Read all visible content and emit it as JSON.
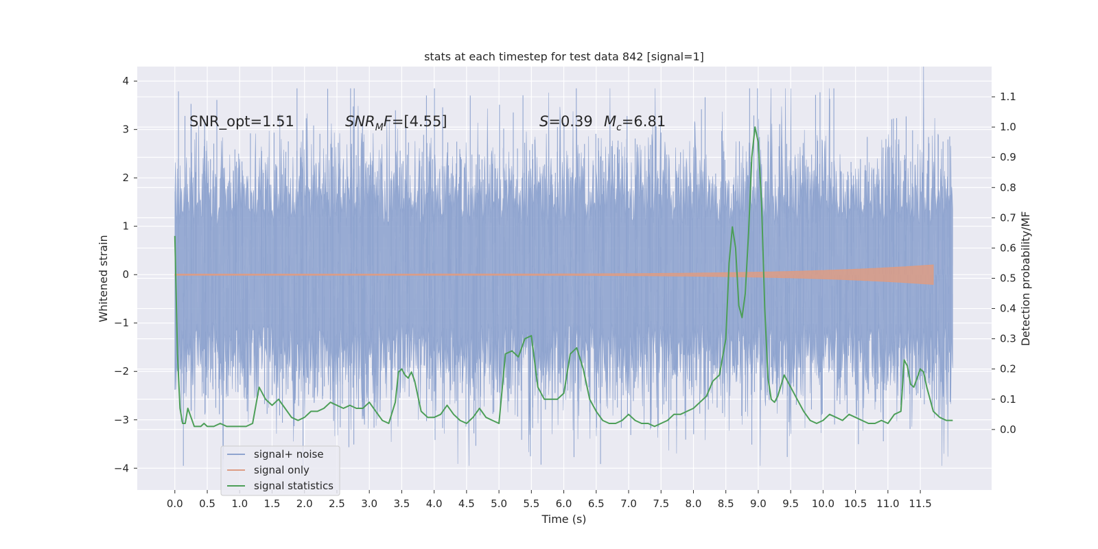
{
  "chart_data": {
    "type": "line",
    "title": "stats at each timestep for test data 842 [signal=1]",
    "xlabel": "Time (s)",
    "ylabel": "Whitened strain",
    "y2label": "Detection probability/MF",
    "xlim": [
      -0.58,
      12.6
    ],
    "ylim": [
      -4.45,
      4.3
    ],
    "y2lim": [
      -0.2,
      1.2
    ],
    "xticks": [
      0.0,
      0.5,
      1.0,
      1.5,
      2.0,
      2.5,
      3.0,
      3.5,
      4.0,
      4.5,
      5.0,
      5.5,
      6.0,
      6.5,
      7.0,
      7.5,
      8.0,
      8.5,
      9.0,
      9.5,
      10.0,
      10.5,
      11.0,
      11.5
    ],
    "xtick_labels": [
      "0.0",
      "0.5",
      "1.0",
      "1.5",
      "2.0",
      "2.5",
      "3.0",
      "3.5",
      "4.0",
      "4.5",
      "5.0",
      "5.5",
      "6.0",
      "6.5",
      "7.0",
      "7.5",
      "8.0",
      "8.5",
      "9.0",
      "9.5",
      "10.0",
      "10.5",
      "11.0",
      "11.5"
    ],
    "yticks": [
      -4,
      -3,
      -2,
      -1,
      0,
      1,
      2,
      3,
      4
    ],
    "ytick_labels": [
      "−4",
      "−3",
      "−2",
      "−1",
      "0",
      "1",
      "2",
      "3",
      "4"
    ],
    "y2ticks": [
      0.0,
      0.1,
      0.2,
      0.3,
      0.4,
      0.5,
      0.6,
      0.7,
      0.8,
      0.9,
      1.0,
      1.1
    ],
    "y2tick_labels": [
      "0.0",
      "0.1",
      "0.2",
      "0.3",
      "0.4",
      "0.5",
      "0.6",
      "0.7",
      "0.8",
      "0.9",
      "1.0",
      "1.1"
    ],
    "grid": true,
    "legend_position": "lower-left",
    "annotations": {
      "snr_opt": "SNR_opt=1.51",
      "snr_mf_main": "SNR",
      "snr_mf_sub": "M",
      "snr_mf_rest": "F=[4.55]",
      "s_main": "S",
      "s_rest": "=0.39",
      "mc_main": "M",
      "mc_sub": "c",
      "mc_rest": "=6.81"
    },
    "series": [
      {
        "name": "signal+ noise",
        "color": "#8fa4cf",
        "axis": "left",
        "x_range": [
          0.0,
          12.0
        ],
        "envelope": "noise with standard deviation about 1, extremes about ±3.9"
      },
      {
        "name": "signal only",
        "color": "#dd9c84",
        "axis": "left",
        "x_range": [
          0.0,
          11.7
        ],
        "envelope": "chirp amplitude growing from 0 to about 0.2 near 11.65 s"
      },
      {
        "name": "signal statistics",
        "color": "#4c9e57",
        "axis": "right",
        "x": [
          0.0,
          0.04,
          0.08,
          0.12,
          0.16,
          0.2,
          0.25,
          0.3,
          0.35,
          0.4,
          0.45,
          0.5,
          0.6,
          0.7,
          0.8,
          0.9,
          1.0,
          1.1,
          1.2,
          1.3,
          1.4,
          1.5,
          1.6,
          1.7,
          1.8,
          1.9,
          2.0,
          2.1,
          2.2,
          2.3,
          2.4,
          2.5,
          2.6,
          2.7,
          2.8,
          2.9,
          3.0,
          3.1,
          3.2,
          3.3,
          3.4,
          3.45,
          3.5,
          3.55,
          3.6,
          3.65,
          3.7,
          3.8,
          3.9,
          4.0,
          4.1,
          4.2,
          4.3,
          4.4,
          4.5,
          4.6,
          4.7,
          4.8,
          4.9,
          5.0,
          5.1,
          5.2,
          5.3,
          5.4,
          5.5,
          5.6,
          5.7,
          5.8,
          5.9,
          6.0,
          6.1,
          6.2,
          6.3,
          6.4,
          6.5,
          6.6,
          6.7,
          6.8,
          6.9,
          7.0,
          7.1,
          7.2,
          7.3,
          7.4,
          7.5,
          7.6,
          7.7,
          7.8,
          7.9,
          8.0,
          8.1,
          8.2,
          8.3,
          8.4,
          8.5,
          8.55,
          8.6,
          8.65,
          8.7,
          8.75,
          8.8,
          8.85,
          8.9,
          8.95,
          9.0,
          9.05,
          9.1,
          9.15,
          9.2,
          9.25,
          9.3,
          9.4,
          9.5,
          9.6,
          9.7,
          9.8,
          9.9,
          10.0,
          10.1,
          10.2,
          10.3,
          10.4,
          10.5,
          10.6,
          10.7,
          10.8,
          10.9,
          11.0,
          11.1,
          11.2,
          11.25,
          11.3,
          11.35,
          11.4,
          11.45,
          11.5,
          11.55,
          11.6,
          11.65,
          11.7,
          11.8,
          11.9,
          12.0
        ],
        "values": [
          0.64,
          0.25,
          0.07,
          0.02,
          0.02,
          0.07,
          0.04,
          0.01,
          0.01,
          0.01,
          0.02,
          0.01,
          0.01,
          0.02,
          0.01,
          0.01,
          0.01,
          0.01,
          0.02,
          0.14,
          0.1,
          0.08,
          0.1,
          0.07,
          0.04,
          0.03,
          0.04,
          0.06,
          0.06,
          0.07,
          0.09,
          0.08,
          0.07,
          0.08,
          0.07,
          0.07,
          0.09,
          0.06,
          0.03,
          0.02,
          0.09,
          0.19,
          0.2,
          0.18,
          0.17,
          0.19,
          0.16,
          0.06,
          0.04,
          0.04,
          0.05,
          0.08,
          0.05,
          0.03,
          0.02,
          0.04,
          0.07,
          0.04,
          0.03,
          0.02,
          0.25,
          0.26,
          0.24,
          0.3,
          0.31,
          0.14,
          0.1,
          0.1,
          0.1,
          0.12,
          0.25,
          0.27,
          0.2,
          0.1,
          0.06,
          0.03,
          0.02,
          0.02,
          0.03,
          0.05,
          0.03,
          0.02,
          0.02,
          0.01,
          0.02,
          0.03,
          0.05,
          0.05,
          0.06,
          0.07,
          0.09,
          0.11,
          0.16,
          0.18,
          0.3,
          0.55,
          0.67,
          0.6,
          0.41,
          0.37,
          0.45,
          0.65,
          0.9,
          1.0,
          0.95,
          0.75,
          0.4,
          0.17,
          0.1,
          0.09,
          0.11,
          0.18,
          0.14,
          0.1,
          0.06,
          0.03,
          0.02,
          0.03,
          0.05,
          0.04,
          0.03,
          0.05,
          0.04,
          0.03,
          0.02,
          0.02,
          0.03,
          0.02,
          0.05,
          0.06,
          0.23,
          0.21,
          0.15,
          0.14,
          0.17,
          0.2,
          0.19,
          0.14,
          0.1,
          0.06,
          0.04,
          0.03,
          0.03
        ]
      }
    ]
  }
}
